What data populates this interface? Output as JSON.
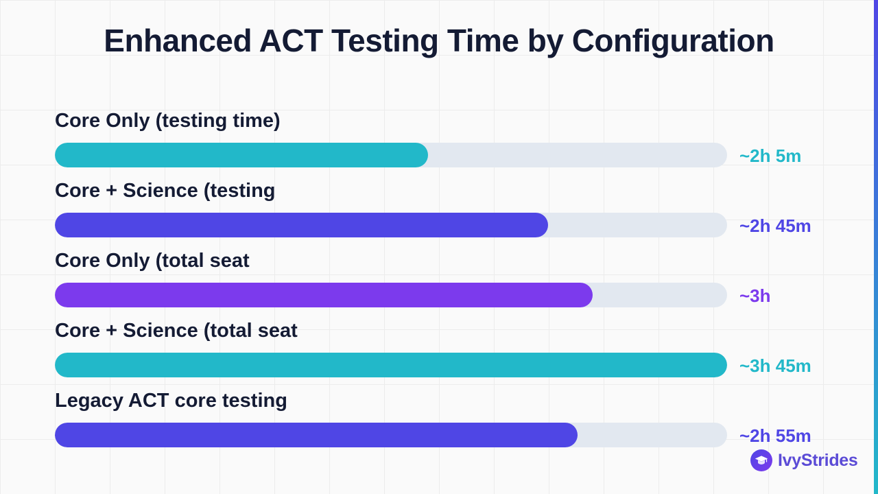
{
  "chart_data": {
    "type": "bar",
    "orientation": "horizontal",
    "title": "Enhanced ACT Testing Time by Configuration",
    "categories": [
      "Core Only (testing time)",
      "Core + Science (testing",
      "Core Only (total seat",
      "Core + Science (total seat",
      "Legacy ACT core testing"
    ],
    "values": [
      125,
      165,
      180,
      225,
      175
    ],
    "value_labels": [
      "~2h 5m",
      "~2h 45m",
      "~3h",
      "~3h 45m",
      "~2h 55m"
    ],
    "unit": "minutes",
    "xlim": [
      0,
      225
    ],
    "colors": [
      "#22b8c9",
      "#4f46e5",
      "#7c3aed",
      "#22b8c9",
      "#4f46e5"
    ],
    "track_color": "#e2e8f0",
    "grid": true
  },
  "brand": {
    "name": "IvyStrides",
    "icon": "graduation-cap-icon"
  }
}
